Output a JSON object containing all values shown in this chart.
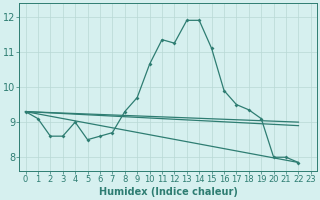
{
  "xlabel": "Humidex (Indice chaleur)",
  "background_color": "#d6f0ef",
  "line_color": "#2e7d72",
  "grid_color": "#b8d8d5",
  "xlim": [
    -0.5,
    23.5
  ],
  "ylim": [
    7.6,
    12.4
  ],
  "xticks": [
    0,
    1,
    2,
    3,
    4,
    5,
    6,
    7,
    8,
    9,
    10,
    11,
    12,
    13,
    14,
    15,
    16,
    17,
    18,
    19,
    20,
    21,
    22,
    23
  ],
  "yticks": [
    8,
    9,
    10,
    11,
    12
  ],
  "line1_x": [
    0,
    1,
    2,
    3,
    4,
    5,
    6,
    7,
    8,
    9,
    10,
    11,
    12,
    13,
    14,
    15,
    16,
    17,
    18,
    19,
    20,
    21,
    22
  ],
  "line1_y": [
    9.3,
    9.1,
    8.6,
    8.6,
    9.0,
    8.5,
    8.6,
    8.7,
    9.3,
    9.7,
    10.65,
    11.35,
    11.25,
    11.9,
    11.9,
    11.1,
    9.9,
    9.5,
    9.35,
    9.1,
    8.0,
    8.0,
    7.85
  ],
  "line2_x": [
    0,
    22
  ],
  "line2_y": [
    9.3,
    7.85
  ],
  "line3_x": [
    0,
    22
  ],
  "line3_y": [
    9.3,
    8.9
  ],
  "line4_x": [
    0,
    22
  ],
  "line4_y": [
    9.3,
    9.0
  ],
  "tick_fontsize": 6,
  "xlabel_fontsize": 7
}
